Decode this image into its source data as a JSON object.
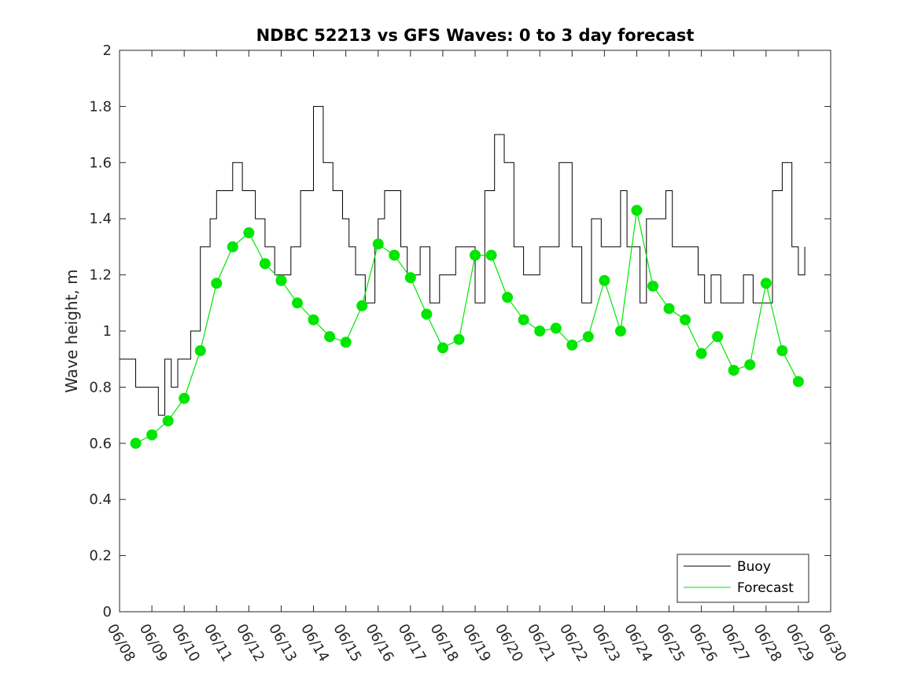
{
  "chart_data": {
    "type": "line",
    "title": "NDBC 52213 vs GFS Waves: 0 to 3 day forecast",
    "xlabel": "",
    "ylabel": "Wave height, m",
    "xlim": [
      "06/08",
      "06/30"
    ],
    "ylim": [
      0,
      2
    ],
    "x_ticks": [
      "06/08",
      "06/09",
      "06/10",
      "06/11",
      "06/12",
      "06/13",
      "06/14",
      "06/15",
      "06/16",
      "06/17",
      "06/18",
      "06/19",
      "06/20",
      "06/21",
      "06/22",
      "06/23",
      "06/24",
      "06/25",
      "06/26",
      "06/27",
      "06/28",
      "06/29",
      "06/30"
    ],
    "y_ticks": [
      0,
      0.2,
      0.4,
      0.6,
      0.8,
      1,
      1.2,
      1.4,
      1.6,
      1.8,
      2
    ],
    "y_tick_labels": [
      "0",
      "0.2",
      "0.4",
      "0.6",
      "0.8",
      "1",
      "1.2",
      "1.4",
      "1.6",
      "1.8",
      "2"
    ],
    "grid": false,
    "legend_position": "bottom-right",
    "legend": [
      {
        "label": "Buoy",
        "color": "#000000"
      },
      {
        "label": "Forecast",
        "color": "#00e600"
      }
    ],
    "series": [
      {
        "name": "Buoy",
        "color": "#000000",
        "x_day": [
          0.0,
          0.5,
          1.0,
          1.2,
          1.4,
          1.6,
          1.8,
          2.0,
          2.2,
          2.5,
          2.8,
          3.0,
          3.2,
          3.5,
          3.8,
          4.0,
          4.2,
          4.5,
          4.8,
          5.0,
          5.3,
          5.6,
          6.0,
          6.3,
          6.6,
          6.9,
          7.1,
          7.3,
          7.6,
          7.9,
          8.0,
          8.2,
          8.4,
          8.7,
          8.9,
          9.1,
          9.3,
          9.6,
          9.9,
          10.1,
          10.4,
          10.7,
          11.0,
          11.3,
          11.6,
          11.9,
          12.2,
          12.5,
          12.8,
          13.0,
          13.3,
          13.6,
          14.0,
          14.3,
          14.6,
          14.9,
          15.2,
          15.5,
          15.7,
          15.9,
          16.1,
          16.3,
          16.6,
          16.9,
          17.1,
          17.3,
          17.6,
          17.9,
          18.1,
          18.3,
          18.6,
          18.9,
          19.1,
          19.3,
          19.6,
          19.9,
          20.2,
          20.5,
          20.8,
          21.0,
          21.2
        ],
        "y": [
          0.9,
          0.8,
          0.8,
          0.7,
          0.9,
          0.8,
          0.9,
          0.9,
          1.0,
          1.3,
          1.4,
          1.5,
          1.5,
          1.6,
          1.5,
          1.5,
          1.4,
          1.3,
          1.2,
          1.2,
          1.3,
          1.5,
          1.8,
          1.6,
          1.5,
          1.4,
          1.3,
          1.2,
          1.1,
          1.3,
          1.4,
          1.5,
          1.5,
          1.3,
          1.2,
          1.2,
          1.3,
          1.1,
          1.2,
          1.2,
          1.3,
          1.3,
          1.1,
          1.5,
          1.7,
          1.6,
          1.3,
          1.2,
          1.2,
          1.3,
          1.3,
          1.6,
          1.3,
          1.1,
          1.4,
          1.3,
          1.3,
          1.5,
          1.3,
          1.3,
          1.1,
          1.4,
          1.4,
          1.5,
          1.3,
          1.3,
          1.3,
          1.2,
          1.1,
          1.2,
          1.1,
          1.1,
          1.1,
          1.2,
          1.1,
          1.1,
          1.5,
          1.6,
          1.3,
          1.2,
          1.3
        ]
      },
      {
        "name": "Forecast",
        "color": "#00e600",
        "x_day": [
          0.5,
          1.0,
          1.5,
          2.0,
          2.5,
          3.0,
          3.5,
          4.0,
          4.5,
          5.0,
          5.5,
          6.0,
          6.5,
          7.0,
          7.5,
          8.0,
          8.5,
          9.0,
          9.5,
          10.0,
          10.5,
          11.0,
          11.5,
          12.0,
          12.5,
          13.0,
          13.5,
          14.0,
          14.5,
          15.0,
          15.5,
          16.0,
          16.5,
          17.0,
          17.5,
          18.0,
          18.5,
          19.0,
          19.5,
          20.0,
          20.5,
          21.0
        ],
        "y": [
          0.6,
          0.63,
          0.68,
          0.76,
          0.93,
          1.17,
          1.3,
          1.35,
          1.24,
          1.18,
          1.1,
          1.04,
          0.98,
          0.96,
          1.09,
          1.31,
          1.27,
          1.19,
          1.06,
          0.94,
          0.97,
          1.27,
          1.27,
          1.12,
          1.04,
          1.0,
          1.01,
          0.95,
          0.98,
          1.18,
          1.0,
          1.43,
          1.16,
          1.08,
          1.04,
          0.92,
          0.98,
          0.86,
          0.88,
          1.17,
          0.93,
          0.82
        ]
      }
    ]
  }
}
